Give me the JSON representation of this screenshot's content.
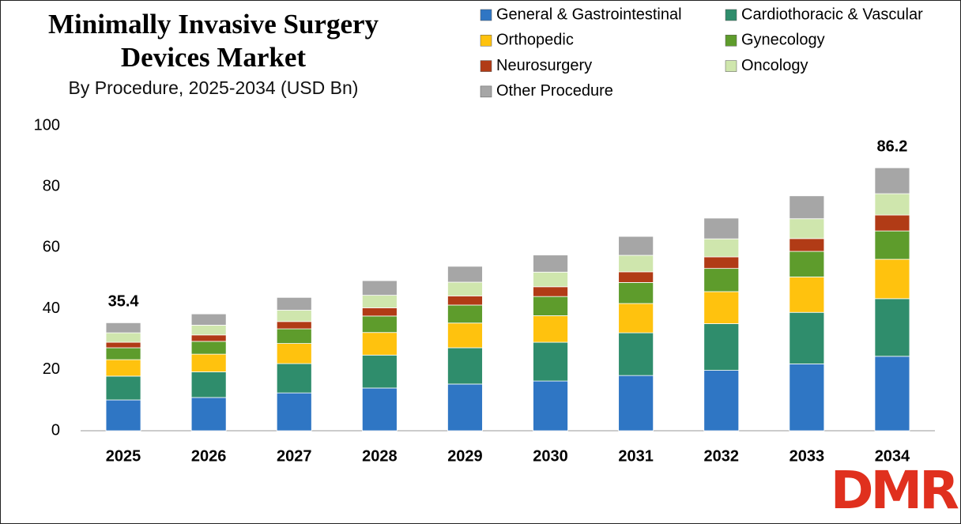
{
  "chart_data": {
    "type": "stacked-bar",
    "title": "Minimally Invasive Surgery Devices Market",
    "subtitle": "By Procedure, 2025-2034 (USD Bn)",
    "categories": [
      "2025",
      "2026",
      "2027",
      "2028",
      "2029",
      "2030",
      "2031",
      "2032",
      "2033",
      "2034"
    ],
    "series": [
      {
        "name": "General & Gastrointestinal",
        "color": "#2f76c4",
        "values": [
          10.1,
          10.9,
          12.4,
          14.0,
          15.3,
          16.3,
          18.1,
          19.8,
          21.9,
          24.4
        ]
      },
      {
        "name": "Cardiothoracic & Vascular",
        "color": "#2f8d6c",
        "values": [
          7.8,
          8.4,
          9.6,
          10.8,
          11.9,
          12.7,
          14.0,
          15.3,
          16.9,
          18.9
        ]
      },
      {
        "name": "Orthopedic",
        "color": "#ffc20e",
        "values": [
          5.4,
          5.8,
          6.6,
          7.4,
          8.1,
          8.7,
          9.6,
          10.5,
          11.6,
          12.9
        ]
      },
      {
        "name": "Gynecology",
        "color": "#5e9c2c",
        "values": [
          3.9,
          4.2,
          4.8,
          5.4,
          5.9,
          6.3,
          6.9,
          7.6,
          8.4,
          9.3
        ]
      },
      {
        "name": "Neurosurgery",
        "color": "#b13b16",
        "values": [
          1.8,
          2.1,
          2.4,
          2.7,
          3.0,
          3.2,
          3.5,
          3.8,
          4.2,
          5.2
        ]
      },
      {
        "name": "Oncology",
        "color": "#cfe6ad",
        "values": [
          3.1,
          3.2,
          3.7,
          4.1,
          4.5,
          4.8,
          5.4,
          5.9,
          6.5,
          7.0
        ]
      },
      {
        "name": "Other Procedure",
        "color": "#a6a6a6",
        "values": [
          3.3,
          3.7,
          4.2,
          4.8,
          5.2,
          5.6,
          6.2,
          6.8,
          7.5,
          8.5
        ]
      }
    ],
    "totals": [
      35.4,
      null,
      null,
      null,
      null,
      null,
      null,
      null,
      null,
      86.2
    ],
    "ylim": [
      0,
      100
    ],
    "yticks": [
      0,
      20,
      40,
      60,
      80,
      100
    ],
    "grid": false,
    "legend": "top-right",
    "logo": "DMR"
  }
}
